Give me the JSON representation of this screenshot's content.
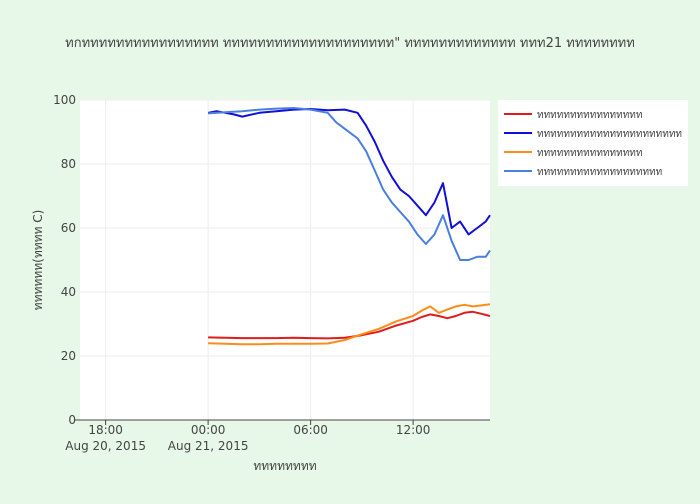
{
  "chart_data": {
    "type": "line",
    "title": "ทกทททททททททททททททท ทททททททททททททททททททท\" ททททททททททททท ททท21 ทททททททท",
    "xlabel": "ทททททททท",
    "ylabel": "ทททททท(ทททท C)",
    "x_axis": {
      "type": "date",
      "range": [
        "2015-08-20 16:30",
        "2015-08-21 16:30"
      ],
      "ticks": [
        {
          "at": "2015-08-20 18:00",
          "label": "18:00",
          "sublabel": "Aug 20, 2015"
        },
        {
          "at": "2015-08-21 00:00",
          "label": "00:00",
          "sublabel": "Aug 21, 2015"
        },
        {
          "at": "2015-08-21 06:00",
          "label": "06:00",
          "sublabel": ""
        },
        {
          "at": "2015-08-21 12:00",
          "label": "12:00",
          "sublabel": ""
        }
      ]
    },
    "ylim": [
      0,
      100
    ],
    "yticks": [
      0,
      20,
      40,
      60,
      80,
      100
    ],
    "grid": true,
    "legend_position": "top-right",
    "series": [
      {
        "name": "ทททททททททททททททท",
        "color": "#e31a1c",
        "x": [
          "2015-08-21 00:00",
          "2015-08-21 01:00",
          "2015-08-21 02:00",
          "2015-08-21 03:00",
          "2015-08-21 04:00",
          "2015-08-21 05:00",
          "2015-08-21 06:00",
          "2015-08-21 07:00",
          "2015-08-21 08:00",
          "2015-08-21 09:00",
          "2015-08-21 10:00",
          "2015-08-21 11:00",
          "2015-08-21 12:00",
          "2015-08-21 12:30",
          "2015-08-21 13:00",
          "2015-08-21 13:30",
          "2015-08-21 14:00",
          "2015-08-21 14:30",
          "2015-08-21 15:00",
          "2015-08-21 15:30",
          "2015-08-21 16:00",
          "2015-08-21 16:30"
        ],
        "y": [
          25.8,
          25.7,
          25.6,
          25.6,
          25.6,
          25.7,
          25.6,
          25.5,
          25.7,
          26.5,
          27.6,
          29.5,
          31.0,
          32.2,
          33.0,
          32.5,
          31.8,
          32.5,
          33.5,
          33.8,
          33.2,
          32.5
        ]
      },
      {
        "name": "ทททททททททททททททททททททท",
        "color": "#1010d8",
        "x": [
          "2015-08-21 00:00",
          "2015-08-21 00:30",
          "2015-08-21 01:00",
          "2015-08-21 01:30",
          "2015-08-21 02:00",
          "2015-08-21 03:00",
          "2015-08-21 04:00",
          "2015-08-21 05:00",
          "2015-08-21 06:00",
          "2015-08-21 07:00",
          "2015-08-21 08:00",
          "2015-08-21 08:45",
          "2015-08-21 09:15",
          "2015-08-21 09:45",
          "2015-08-21 10:15",
          "2015-08-21 10:45",
          "2015-08-21 11:15",
          "2015-08-21 11:45",
          "2015-08-21 12:15",
          "2015-08-21 12:45",
          "2015-08-21 13:15",
          "2015-08-21 13:45",
          "2015-08-21 14:15",
          "2015-08-21 14:45",
          "2015-08-21 15:15",
          "2015-08-21 15:45",
          "2015-08-21 16:15",
          "2015-08-21 16:30"
        ],
        "y": [
          96,
          96.5,
          96,
          95.5,
          94.8,
          96,
          96.5,
          97,
          97.2,
          96.8,
          97,
          96,
          92,
          87,
          81,
          76,
          72,
          70,
          67,
          64,
          68,
          74,
          60,
          62,
          58,
          60,
          62,
          64
        ]
      },
      {
        "name": "ทททททททททททททททท",
        "color": "#ff8c1a",
        "x": [
          "2015-08-21 00:00",
          "2015-08-21 01:00",
          "2015-08-21 02:00",
          "2015-08-21 03:00",
          "2015-08-21 04:00",
          "2015-08-21 05:00",
          "2015-08-21 06:00",
          "2015-08-21 07:00",
          "2015-08-21 08:00",
          "2015-08-21 09:00",
          "2015-08-21 10:00",
          "2015-08-21 11:00",
          "2015-08-21 12:00",
          "2015-08-21 12:30",
          "2015-08-21 13:00",
          "2015-08-21 13:30",
          "2015-08-21 14:00",
          "2015-08-21 14:30",
          "2015-08-21 15:00",
          "2015-08-21 15:30",
          "2015-08-21 16:00",
          "2015-08-21 16:30"
        ],
        "y": [
          24.0,
          23.8,
          23.7,
          23.7,
          23.8,
          23.8,
          23.8,
          23.9,
          25.0,
          26.8,
          28.5,
          30.8,
          32.5,
          34.2,
          35.5,
          33.5,
          34.5,
          35.5,
          36.0,
          35.5,
          35.8,
          36.2
        ]
      },
      {
        "name": "ททททททททททททททททททท",
        "color": "#4a7fe0",
        "x": [
          "2015-08-21 00:00",
          "2015-08-21 01:00",
          "2015-08-21 02:00",
          "2015-08-21 03:00",
          "2015-08-21 04:00",
          "2015-08-21 05:00",
          "2015-08-21 06:00",
          "2015-08-21 07:00",
          "2015-08-21 07:30",
          "2015-08-21 08:00",
          "2015-08-21 08:45",
          "2015-08-21 09:15",
          "2015-08-21 09:45",
          "2015-08-21 10:15",
          "2015-08-21 10:45",
          "2015-08-21 11:15",
          "2015-08-21 11:45",
          "2015-08-21 12:15",
          "2015-08-21 12:45",
          "2015-08-21 13:15",
          "2015-08-21 13:45",
          "2015-08-21 14:15",
          "2015-08-21 14:45",
          "2015-08-21 15:15",
          "2015-08-21 15:45",
          "2015-08-21 16:15",
          "2015-08-21 16:30"
        ],
        "y": [
          95.8,
          96.2,
          96.5,
          97,
          97.3,
          97.5,
          97,
          96,
          93,
          91,
          88,
          84,
          78,
          72,
          68,
          65,
          62,
          58,
          55,
          58,
          64,
          56,
          50,
          50,
          51,
          51,
          53
        ]
      }
    ]
  }
}
